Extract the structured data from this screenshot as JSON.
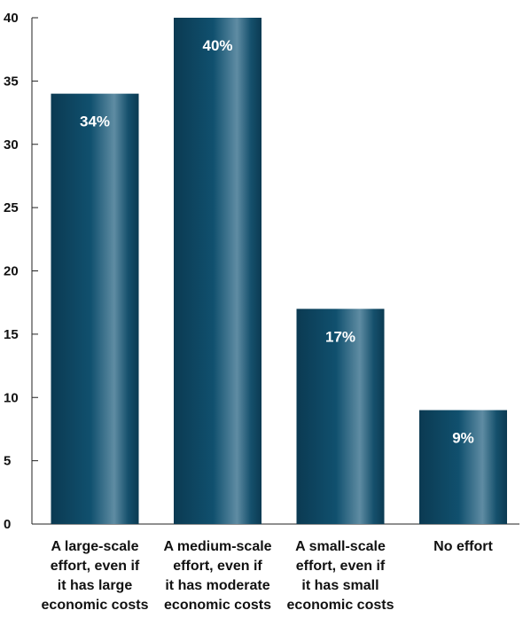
{
  "chart_data": {
    "type": "bar",
    "title": "",
    "xlabel": "",
    "ylabel": "",
    "categories": [
      [
        "A large-scale",
        "effort, even if",
        "it has large",
        "economic costs"
      ],
      [
        "A medium-scale",
        "effort, even if",
        "it has moderate",
        "economic costs"
      ],
      [
        "A small-scale",
        "effort, even if",
        "it has small",
        "economic costs"
      ],
      [
        "No effort"
      ]
    ],
    "values": [
      34,
      40,
      17,
      9
    ],
    "data_labels": [
      "34%",
      "40%",
      "17%",
      "9%"
    ],
    "ylim": [
      0,
      40
    ],
    "yticks": [
      0,
      5,
      10,
      15,
      20,
      25,
      30,
      35,
      40
    ],
    "grid": false,
    "legend": "none"
  },
  "colors": {
    "bar_edge": "#0b3a52",
    "bar_mid": "#10506e",
    "bar_highlight": "#5f8ca3",
    "axis": "#222222",
    "text": "#111111",
    "data_label": "#ffffff"
  }
}
